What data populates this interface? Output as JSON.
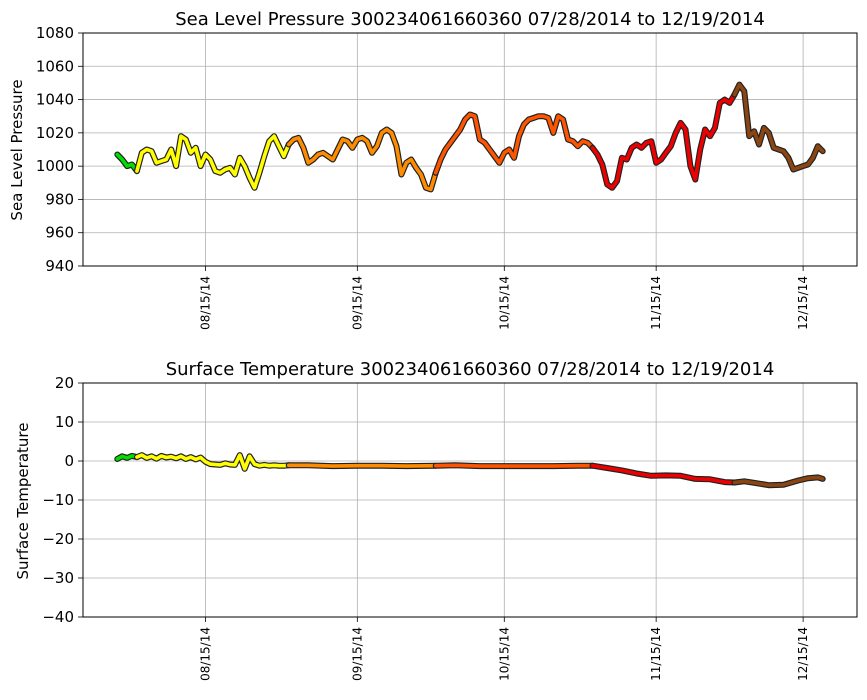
{
  "chart_data": [
    {
      "type": "line",
      "title": "Sea Level Pressure 300234061660360  07/28/2014 to 12/19/2014",
      "xlabel": "",
      "ylabel": "Sea Level Pressure",
      "xlim": [
        "2014-07-21",
        "2014-12-26"
      ],
      "ylim": [
        940,
        1080
      ],
      "yticks": [
        940,
        960,
        980,
        1000,
        1020,
        1040,
        1060,
        1080
      ],
      "xticks": [
        "2014-08-15",
        "2014-09-15",
        "2014-10-15",
        "2014-11-15",
        "2014-12-15"
      ],
      "xtick_labels": [
        "08/15/14",
        "09/15/14",
        "10/15/14",
        "11/15/14",
        "12/15/14"
      ],
      "grid": true,
      "series": [
        {
          "color": "#00dd00",
          "points": [
            [
              "2014-07-28",
              1007
            ],
            [
              "2014-07-29",
              1004
            ],
            [
              "2014-07-30",
              1000
            ],
            [
              "2014-07-31",
              1001
            ],
            [
              "2014-08-01",
              997
            ]
          ]
        },
        {
          "color": "#ffff00",
          "points": [
            [
              "2014-08-01",
              997
            ],
            [
              "2014-08-02",
              1008
            ],
            [
              "2014-08-03",
              1010
            ],
            [
              "2014-08-04",
              1009
            ],
            [
              "2014-08-05",
              1002
            ],
            [
              "2014-08-06",
              1003
            ],
            [
              "2014-08-07",
              1004
            ],
            [
              "2014-08-08",
              1010
            ],
            [
              "2014-08-09",
              1000
            ],
            [
              "2014-08-10",
              1018
            ],
            [
              "2014-08-11",
              1016
            ],
            [
              "2014-08-12",
              1008
            ],
            [
              "2014-08-13",
              1011
            ],
            [
              "2014-08-14",
              1000
            ],
            [
              "2014-08-15",
              1007
            ],
            [
              "2014-08-16",
              1004
            ],
            [
              "2014-08-17",
              997
            ],
            [
              "2014-08-18",
              996
            ],
            [
              "2014-08-19",
              998
            ],
            [
              "2014-08-20",
              999
            ],
            [
              "2014-08-21",
              995
            ],
            [
              "2014-08-22",
              1005
            ],
            [
              "2014-08-23",
              1000
            ],
            [
              "2014-08-24",
              993
            ],
            [
              "2014-08-25",
              987
            ],
            [
              "2014-08-26",
              996
            ],
            [
              "2014-08-27",
              1006
            ],
            [
              "2014-08-28",
              1015
            ],
            [
              "2014-08-29",
              1018
            ],
            [
              "2014-08-30",
              1012
            ],
            [
              "2014-08-31",
              1006
            ],
            [
              "2014-09-01",
              1013
            ]
          ]
        },
        {
          "color": "#ff8c00",
          "points": [
            [
              "2014-09-01",
              1013
            ],
            [
              "2014-09-02",
              1016
            ],
            [
              "2014-09-03",
              1017
            ],
            [
              "2014-09-04",
              1011
            ],
            [
              "2014-09-05",
              1002
            ],
            [
              "2014-09-06",
              1004
            ],
            [
              "2014-09-07",
              1007
            ],
            [
              "2014-09-08",
              1008
            ],
            [
              "2014-09-09",
              1006
            ],
            [
              "2014-09-10",
              1004
            ],
            [
              "2014-09-11",
              1010
            ],
            [
              "2014-09-12",
              1016
            ],
            [
              "2014-09-13",
              1015
            ],
            [
              "2014-09-14",
              1011
            ],
            [
              "2014-09-15",
              1016
            ],
            [
              "2014-09-16",
              1017
            ],
            [
              "2014-09-17",
              1015
            ],
            [
              "2014-09-18",
              1008
            ],
            [
              "2014-09-19",
              1012
            ],
            [
              "2014-09-20",
              1020
            ],
            [
              "2014-09-21",
              1022
            ],
            [
              "2014-09-22",
              1020
            ],
            [
              "2014-09-23",
              1012
            ],
            [
              "2014-09-24",
              995
            ],
            [
              "2014-09-25",
              1002
            ],
            [
              "2014-09-26",
              1004
            ],
            [
              "2014-09-27",
              999
            ],
            [
              "2014-09-28",
              995
            ],
            [
              "2014-09-29",
              987
            ],
            [
              "2014-09-30",
              986
            ],
            [
              "2014-10-01",
              996
            ]
          ]
        },
        {
          "color": "#ff5500",
          "points": [
            [
              "2014-10-01",
              996
            ],
            [
              "2014-10-02",
              1004
            ],
            [
              "2014-10-03",
              1010
            ],
            [
              "2014-10-04",
              1014
            ],
            [
              "2014-10-05",
              1018
            ],
            [
              "2014-10-06",
              1022
            ],
            [
              "2014-10-07",
              1028
            ],
            [
              "2014-10-08",
              1031
            ],
            [
              "2014-10-09",
              1030
            ],
            [
              "2014-10-10",
              1016
            ],
            [
              "2014-10-11",
              1014
            ],
            [
              "2014-10-12",
              1010
            ],
            [
              "2014-10-13",
              1006
            ],
            [
              "2014-10-14",
              1002
            ],
            [
              "2014-10-15",
              1008
            ],
            [
              "2014-10-16",
              1010
            ],
            [
              "2014-10-17",
              1005
            ],
            [
              "2014-10-18",
              1018
            ],
            [
              "2014-10-19",
              1025
            ],
            [
              "2014-10-20",
              1028
            ],
            [
              "2014-10-21",
              1029
            ],
            [
              "2014-10-22",
              1030
            ],
            [
              "2014-10-23",
              1030
            ],
            [
              "2014-10-24",
              1029
            ],
            [
              "2014-10-25",
              1020
            ],
            [
              "2014-10-26",
              1030
            ],
            [
              "2014-10-27",
              1028
            ],
            [
              "2014-10-28",
              1016
            ],
            [
              "2014-10-29",
              1015
            ],
            [
              "2014-10-30",
              1012
            ],
            [
              "2014-10-31",
              1015
            ],
            [
              "2014-11-01",
              1014
            ],
            [
              "2014-11-02",
              1011
            ]
          ]
        },
        {
          "color": "#ee0000",
          "points": [
            [
              "2014-11-02",
              1011
            ],
            [
              "2014-11-03",
              1007
            ],
            [
              "2014-11-04",
              1001
            ],
            [
              "2014-11-05",
              989
            ],
            [
              "2014-11-06",
              987
            ],
            [
              "2014-11-07",
              991
            ],
            [
              "2014-11-08",
              1005
            ],
            [
              "2014-11-09",
              1004
            ],
            [
              "2014-11-10",
              1011
            ],
            [
              "2014-11-11",
              1013
            ],
            [
              "2014-11-12",
              1011
            ],
            [
              "2014-11-13",
              1014
            ],
            [
              "2014-11-14",
              1015
            ],
            [
              "2014-11-15",
              1002
            ],
            [
              "2014-11-16",
              1004
            ],
            [
              "2014-11-17",
              1008
            ],
            [
              "2014-11-18",
              1012
            ],
            [
              "2014-11-19",
              1020
            ],
            [
              "2014-11-20",
              1026
            ],
            [
              "2014-11-21",
              1022
            ],
            [
              "2014-11-22",
              1000
            ],
            [
              "2014-11-23",
              992
            ],
            [
              "2014-11-24",
              1010
            ],
            [
              "2014-11-25",
              1022
            ],
            [
              "2014-11-26",
              1018
            ],
            [
              "2014-11-27",
              1023
            ],
            [
              "2014-11-28",
              1038
            ],
            [
              "2014-11-29",
              1040
            ],
            [
              "2014-11-30",
              1038
            ],
            [
              "2014-12-01",
              1043
            ]
          ]
        },
        {
          "color": "#8b4513",
          "points": [
            [
              "2014-12-01",
              1043
            ],
            [
              "2014-12-02",
              1049
            ],
            [
              "2014-12-03",
              1045
            ],
            [
              "2014-12-04",
              1018
            ],
            [
              "2014-12-05",
              1021
            ],
            [
              "2014-12-06",
              1013
            ],
            [
              "2014-12-07",
              1023
            ],
            [
              "2014-12-08",
              1020
            ],
            [
              "2014-12-09",
              1011
            ],
            [
              "2014-12-10",
              1010
            ],
            [
              "2014-12-11",
              1009
            ],
            [
              "2014-12-12",
              1005
            ],
            [
              "2014-12-13",
              998
            ],
            [
              "2014-12-14",
              999
            ],
            [
              "2014-12-15",
              1000
            ],
            [
              "2014-12-16",
              1001
            ],
            [
              "2014-12-17",
              1005
            ],
            [
              "2014-12-18",
              1012
            ],
            [
              "2014-12-19",
              1009
            ]
          ]
        }
      ]
    },
    {
      "type": "line",
      "title": "Surface Temperature 300234061660360  07/28/2014 to 12/19/2014",
      "xlabel": "",
      "ylabel": "Surface Temperature",
      "xlim": [
        "2014-07-21",
        "2014-12-26"
      ],
      "ylim": [
        -40,
        20
      ],
      "yticks": [
        -40,
        -30,
        -20,
        -10,
        0,
        10,
        20
      ],
      "xticks": [
        "2014-08-15",
        "2014-09-15",
        "2014-10-15",
        "2014-11-15",
        "2014-12-15"
      ],
      "xtick_labels": [
        "08/15/14",
        "09/15/14",
        "10/15/14",
        "11/15/14",
        "12/15/14"
      ],
      "grid": true,
      "series": [
        {
          "color": "#00dd00",
          "points": [
            [
              "2014-07-28",
              0.5
            ],
            [
              "2014-07-29",
              1.2
            ],
            [
              "2014-07-30",
              0.8
            ],
            [
              "2014-07-31",
              1.3
            ],
            [
              "2014-08-01",
              1.0
            ]
          ]
        },
        {
          "color": "#ffff00",
          "points": [
            [
              "2014-08-01",
              1.0
            ],
            [
              "2014-08-02",
              1.5
            ],
            [
              "2014-08-03",
              0.8
            ],
            [
              "2014-08-04",
              1.2
            ],
            [
              "2014-08-05",
              0.6
            ],
            [
              "2014-08-06",
              1.3
            ],
            [
              "2014-08-07",
              0.9
            ],
            [
              "2014-08-08",
              1.1
            ],
            [
              "2014-08-09",
              0.7
            ],
            [
              "2014-08-10",
              1.2
            ],
            [
              "2014-08-11",
              0.5
            ],
            [
              "2014-08-12",
              1.0
            ],
            [
              "2014-08-13",
              0.4
            ],
            [
              "2014-08-14",
              0.9
            ],
            [
              "2014-08-15",
              -0.2
            ],
            [
              "2014-08-16",
              -0.8
            ],
            [
              "2014-08-17",
              -0.9
            ],
            [
              "2014-08-18",
              -1.0
            ],
            [
              "2014-08-19",
              -0.6
            ],
            [
              "2014-08-20",
              -0.9
            ],
            [
              "2014-08-21",
              -1.0
            ],
            [
              "2014-08-22",
              1.5
            ],
            [
              "2014-08-23",
              -2.0
            ],
            [
              "2014-08-24",
              1.2
            ],
            [
              "2014-08-25",
              -0.8
            ],
            [
              "2014-08-26",
              -1.2
            ],
            [
              "2014-08-27",
              -1.0
            ],
            [
              "2014-08-28",
              -1.2
            ],
            [
              "2014-08-29",
              -1.1
            ],
            [
              "2014-08-30",
              -1.2
            ],
            [
              "2014-08-31",
              -1.2
            ],
            [
              "2014-09-01",
              -1.1
            ]
          ]
        },
        {
          "color": "#ff8c00",
          "points": [
            [
              "2014-09-01",
              -1.1
            ],
            [
              "2014-09-05",
              -1.1
            ],
            [
              "2014-09-10",
              -1.3
            ],
            [
              "2014-09-15",
              -1.2
            ],
            [
              "2014-09-20",
              -1.2
            ],
            [
              "2014-09-25",
              -1.3
            ],
            [
              "2014-10-01",
              -1.2
            ]
          ]
        },
        {
          "color": "#ff5500",
          "points": [
            [
              "2014-10-01",
              -1.2
            ],
            [
              "2014-10-05",
              -1.1
            ],
            [
              "2014-10-10",
              -1.3
            ],
            [
              "2014-10-15",
              -1.3
            ],
            [
              "2014-10-20",
              -1.3
            ],
            [
              "2014-10-25",
              -1.3
            ],
            [
              "2014-10-30",
              -1.2
            ],
            [
              "2014-11-02",
              -1.2
            ]
          ]
        },
        {
          "color": "#ee0000",
          "points": [
            [
              "2014-11-02",
              -1.2
            ],
            [
              "2014-11-05",
              -1.8
            ],
            [
              "2014-11-08",
              -2.4
            ],
            [
              "2014-11-11",
              -3.2
            ],
            [
              "2014-11-14",
              -3.8
            ],
            [
              "2014-11-17",
              -3.7
            ],
            [
              "2014-11-20",
              -3.8
            ],
            [
              "2014-11-23",
              -4.6
            ],
            [
              "2014-11-26",
              -4.7
            ],
            [
              "2014-11-29",
              -5.4
            ],
            [
              "2014-12-01",
              -5.5
            ]
          ]
        },
        {
          "color": "#8b4513",
          "points": [
            [
              "2014-12-01",
              -5.5
            ],
            [
              "2014-12-03",
              -5.2
            ],
            [
              "2014-12-05",
              -5.6
            ],
            [
              "2014-12-08",
              -6.2
            ],
            [
              "2014-12-11",
              -6.1
            ],
            [
              "2014-12-14",
              -5.0
            ],
            [
              "2014-12-16",
              -4.4
            ],
            [
              "2014-12-18",
              -4.2
            ],
            [
              "2014-12-19",
              -4.6
            ]
          ]
        }
      ]
    }
  ]
}
